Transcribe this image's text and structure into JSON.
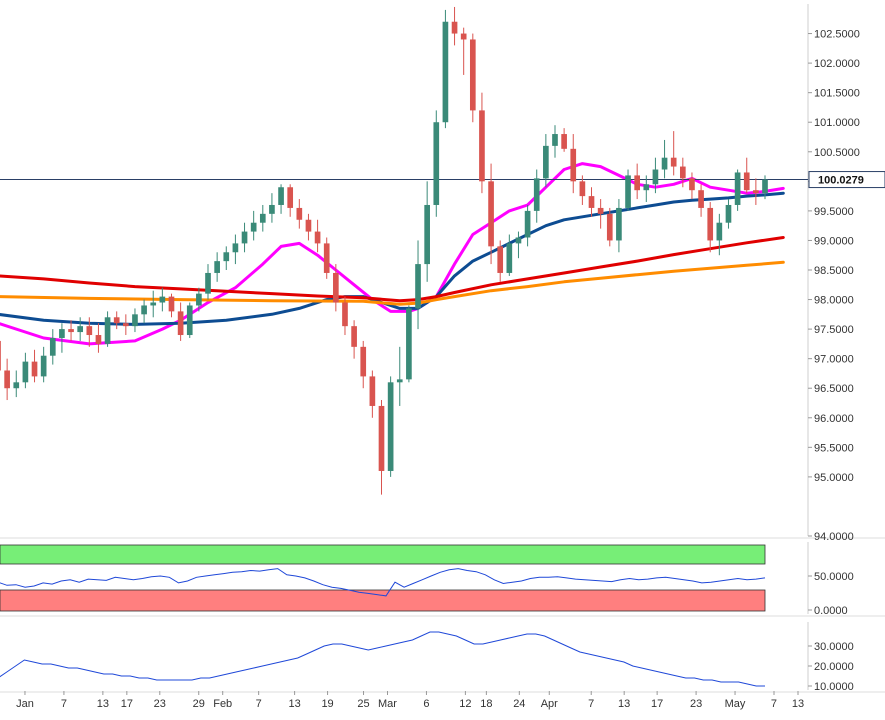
{
  "chart_data": [
    {
      "type": "candlestick",
      "y_ticks": [
        "94.0000",
        "95.0000",
        "95.5000",
        "96.0000",
        "96.5000",
        "97.0000",
        "97.5000",
        "98.0000",
        "98.5000",
        "99.0000",
        "99.5000",
        "100.0000",
        "100.5000",
        "101.0000",
        "101.5000",
        "102.0000",
        "102.5000"
      ],
      "ylim": [
        94.0,
        103.0
      ],
      "last_price": "100.0279",
      "x_ticks": [
        "Jan",
        "7",
        "13",
        "17",
        "23",
        "29",
        "Feb",
        "7",
        "13",
        "19",
        "25",
        "Mar",
        "6",
        "12",
        "18",
        "24",
        "Apr",
        "7",
        "13",
        "17",
        "23",
        "May",
        "7",
        "13"
      ],
      "candles": [
        [
          97.3,
          97.6,
          96.7,
          96.8
        ],
        [
          96.8,
          97.0,
          96.3,
          96.5
        ],
        [
          96.5,
          96.8,
          96.35,
          96.6
        ],
        [
          96.6,
          97.1,
          96.5,
          96.95
        ],
        [
          96.95,
          97.15,
          96.6,
          96.7
        ],
        [
          96.7,
          97.2,
          96.6,
          97.05
        ],
        [
          97.05,
          97.5,
          96.9,
          97.35
        ],
        [
          97.35,
          97.6,
          97.1,
          97.5
        ],
        [
          97.5,
          97.65,
          97.3,
          97.45
        ],
        [
          97.45,
          97.7,
          97.3,
          97.55
        ],
        [
          97.55,
          97.7,
          97.2,
          97.4
        ],
        [
          97.4,
          97.6,
          97.1,
          97.25
        ],
        [
          97.25,
          97.8,
          97.2,
          97.7
        ],
        [
          97.7,
          97.8,
          97.5,
          97.6
        ],
        [
          97.6,
          97.75,
          97.4,
          97.55
        ],
        [
          97.55,
          97.85,
          97.45,
          97.75
        ],
        [
          97.75,
          98.0,
          97.6,
          97.9
        ],
        [
          97.9,
          98.15,
          97.7,
          97.95
        ],
        [
          97.95,
          98.2,
          97.8,
          98.05
        ],
        [
          98.05,
          98.1,
          97.7,
          97.8
        ],
        [
          97.8,
          97.95,
          97.3,
          97.4
        ],
        [
          97.4,
          97.95,
          97.35,
          97.9
        ],
        [
          97.9,
          98.2,
          97.8,
          98.1
        ],
        [
          98.1,
          98.6,
          98.0,
          98.45
        ],
        [
          98.45,
          98.8,
          98.3,
          98.65
        ],
        [
          98.65,
          98.9,
          98.5,
          98.8
        ],
        [
          98.8,
          99.1,
          98.6,
          98.95
        ],
        [
          98.95,
          99.3,
          98.8,
          99.15
        ],
        [
          99.15,
          99.5,
          99.0,
          99.3
        ],
        [
          99.3,
          99.6,
          99.15,
          99.45
        ],
        [
          99.45,
          99.8,
          99.3,
          99.6
        ],
        [
          99.6,
          99.95,
          99.45,
          99.9
        ],
        [
          99.9,
          99.95,
          99.4,
          99.55
        ],
        [
          99.55,
          99.7,
          99.2,
          99.35
        ],
        [
          99.35,
          99.45,
          99.0,
          99.15
        ],
        [
          99.15,
          99.35,
          98.8,
          98.95
        ],
        [
          98.95,
          99.05,
          98.35,
          98.45
        ],
        [
          98.45,
          98.6,
          97.8,
          97.95
        ],
        [
          97.95,
          98.05,
          97.4,
          97.55
        ],
        [
          97.55,
          97.65,
          97.0,
          97.2
        ],
        [
          97.2,
          97.3,
          96.5,
          96.7
        ],
        [
          96.7,
          96.8,
          96.0,
          96.2
        ],
        [
          96.2,
          96.3,
          94.7,
          95.1
        ],
        [
          95.1,
          96.7,
          95.0,
          96.6
        ],
        [
          96.6,
          97.2,
          96.2,
          96.65
        ],
        [
          96.65,
          97.9,
          96.6,
          97.85
        ],
        [
          97.85,
          99.0,
          97.5,
          98.6
        ],
        [
          98.6,
          100.0,
          98.3,
          99.6
        ],
        [
          99.6,
          101.2,
          99.4,
          101.0
        ],
        [
          101.0,
          102.9,
          100.9,
          102.7
        ],
        [
          102.7,
          102.95,
          102.3,
          102.5
        ],
        [
          102.5,
          102.6,
          101.8,
          102.4
        ],
        [
          102.4,
          102.5,
          101.0,
          101.2
        ],
        [
          101.2,
          101.5,
          99.8,
          100.0
        ],
        [
          100.0,
          100.3,
          98.6,
          98.9
        ],
        [
          98.9,
          99.0,
          98.3,
          98.45
        ],
        [
          98.45,
          99.1,
          98.4,
          98.95
        ],
        [
          98.95,
          99.15,
          98.7,
          99.05
        ],
        [
          99.05,
          99.6,
          98.9,
          99.5
        ],
        [
          99.5,
          100.2,
          99.3,
          100.05
        ],
        [
          100.05,
          100.8,
          99.9,
          100.6
        ],
        [
          100.6,
          100.95,
          100.4,
          100.8
        ],
        [
          100.8,
          100.9,
          100.5,
          100.55
        ],
        [
          100.55,
          100.8,
          99.8,
          100.0
        ],
        [
          100.0,
          100.1,
          99.6,
          99.75
        ],
        [
          99.75,
          99.9,
          99.4,
          99.55
        ],
        [
          99.55,
          99.7,
          99.2,
          99.45
        ],
        [
          99.45,
          99.55,
          98.9,
          99.0
        ],
        [
          99.0,
          99.7,
          98.8,
          99.55
        ],
        [
          99.55,
          100.2,
          99.5,
          100.1
        ],
        [
          100.1,
          100.3,
          99.7,
          99.85
        ],
        [
          99.85,
          100.1,
          99.65,
          99.95
        ],
        [
          99.95,
          100.4,
          99.8,
          100.2
        ],
        [
          100.2,
          100.7,
          100.05,
          100.4
        ],
        [
          100.4,
          100.85,
          100.1,
          100.25
        ],
        [
          100.25,
          100.4,
          99.9,
          100.05
        ],
        [
          100.05,
          100.15,
          99.7,
          99.85
        ],
        [
          99.85,
          99.95,
          99.4,
          99.55
        ],
        [
          99.55,
          99.65,
          98.8,
          99.0
        ],
        [
          99.0,
          99.45,
          98.75,
          99.3
        ],
        [
          99.3,
          99.7,
          99.2,
          99.6
        ],
        [
          99.6,
          100.2,
          99.5,
          100.15
        ],
        [
          100.15,
          100.4,
          99.8,
          99.85
        ],
        [
          99.85,
          100.05,
          99.6,
          99.8
        ],
        [
          99.8,
          100.1,
          99.7,
          100.03
        ]
      ],
      "series": [
        {
          "color": "#ff00ff",
          "values": [
            [
              0,
              97.6
            ],
            [
              5,
              97.35
            ],
            [
              10,
              97.25
            ],
            [
              15,
              97.3
            ],
            [
              18,
              97.5
            ],
            [
              20,
              97.65
            ],
            [
              23,
              97.95
            ],
            [
              26,
              98.2
            ],
            [
              29,
              98.6
            ],
            [
              31,
              98.9
            ],
            [
              33,
              98.95
            ],
            [
              35,
              98.75
            ],
            [
              37,
              98.5
            ],
            [
              39,
              98.25
            ],
            [
              41,
              98.0
            ],
            [
              43,
              97.8
            ],
            [
              45,
              97.8
            ],
            [
              46,
              97.85
            ],
            [
              48,
              98.05
            ],
            [
              50,
              98.6
            ],
            [
              52,
              99.1
            ],
            [
              54,
              99.3
            ],
            [
              56,
              99.5
            ],
            [
              58,
              99.6
            ],
            [
              60,
              99.9
            ],
            [
              62,
              100.2
            ],
            [
              64,
              100.3
            ],
            [
              66,
              100.25
            ],
            [
              68,
              100.1
            ],
            [
              70,
              99.95
            ],
            [
              72,
              99.9
            ],
            [
              74,
              99.95
            ],
            [
              76,
              100.05
            ],
            [
              78,
              99.9
            ],
            [
              80,
              99.85
            ],
            [
              82,
              99.8
            ],
            [
              84,
              99.83
            ],
            [
              86,
              99.88
            ]
          ]
        },
        {
          "color": "#0d4c92",
          "values": [
            [
              0,
              97.75
            ],
            [
              5,
              97.65
            ],
            [
              10,
              97.6
            ],
            [
              15,
              97.58
            ],
            [
              20,
              97.6
            ],
            [
              25,
              97.65
            ],
            [
              30,
              97.75
            ],
            [
              33,
              97.85
            ],
            [
              36,
              98.0
            ],
            [
              38,
              98.05
            ],
            [
              40,
              98.05
            ],
            [
              42,
              97.95
            ],
            [
              44,
              97.85
            ],
            [
              46,
              97.85
            ],
            [
              48,
              98.05
            ],
            [
              50,
              98.4
            ],
            [
              52,
              98.65
            ],
            [
              54,
              98.8
            ],
            [
              56,
              98.95
            ],
            [
              58,
              99.1
            ],
            [
              60,
              99.25
            ],
            [
              62,
              99.35
            ],
            [
              64,
              99.4
            ],
            [
              66,
              99.45
            ],
            [
              68,
              99.5
            ],
            [
              70,
              99.55
            ],
            [
              72,
              99.6
            ],
            [
              74,
              99.65
            ],
            [
              76,
              99.68
            ],
            [
              78,
              99.7
            ],
            [
              80,
              99.72
            ],
            [
              82,
              99.75
            ],
            [
              84,
              99.77
            ],
            [
              86,
              99.8
            ]
          ]
        },
        {
          "color": "#ff8c00",
          "values": [
            [
              0,
              98.05
            ],
            [
              10,
              98.02
            ],
            [
              20,
              98.0
            ],
            [
              30,
              97.98
            ],
            [
              40,
              97.97
            ],
            [
              44,
              97.92
            ],
            [
              46,
              97.94
            ],
            [
              48,
              98.0
            ],
            [
              50,
              98.05
            ],
            [
              54,
              98.15
            ],
            [
              58,
              98.22
            ],
            [
              62,
              98.3
            ],
            [
              66,
              98.36
            ],
            [
              70,
              98.42
            ],
            [
              74,
              98.48
            ],
            [
              78,
              98.53
            ],
            [
              82,
              98.58
            ],
            [
              86,
              98.63
            ]
          ]
        },
        {
          "color": "#e00000",
          "values": [
            [
              0,
              98.4
            ],
            [
              5,
              98.35
            ],
            [
              10,
              98.28
            ],
            [
              15,
              98.22
            ],
            [
              20,
              98.18
            ],
            [
              25,
              98.14
            ],
            [
              30,
              98.1
            ],
            [
              35,
              98.06
            ],
            [
              40,
              98.03
            ],
            [
              44,
              97.98
            ],
            [
              46,
              98.0
            ],
            [
              48,
              98.05
            ],
            [
              50,
              98.12
            ],
            [
              54,
              98.25
            ],
            [
              58,
              98.35
            ],
            [
              62,
              98.45
            ],
            [
              66,
              98.55
            ],
            [
              70,
              98.65
            ],
            [
              74,
              98.76
            ],
            [
              78,
              98.86
            ],
            [
              82,
              98.96
            ],
            [
              86,
              99.05
            ]
          ]
        }
      ]
    },
    {
      "type": "line",
      "y_ticks": [
        "0.0000",
        "50.0000"
      ],
      "ylim": [
        0,
        100
      ],
      "overbought_color": "#77ee77",
      "oversold_color": "#ff7f7f",
      "series": [
        {
          "color": "#1f48d8",
          "values": [
            48,
            43,
            44,
            40,
            42,
            47,
            45,
            50,
            52,
            48,
            53,
            52,
            51,
            56,
            54,
            52,
            54,
            57,
            58,
            56,
            47,
            50,
            56,
            58,
            60,
            62,
            64,
            65,
            67,
            66,
            68,
            70,
            60,
            58,
            55,
            50,
            44,
            40,
            38,
            35,
            32,
            30,
            28,
            26,
            48,
            40,
            46,
            52,
            58,
            64,
            68,
            70,
            67,
            65,
            60,
            52,
            46,
            48,
            50,
            54,
            56,
            56,
            57,
            55,
            53,
            52,
            51,
            50,
            49,
            52,
            54,
            52,
            53,
            55,
            56,
            54,
            52,
            50,
            47,
            48,
            50,
            52,
            54,
            52,
            53,
            55
          ]
        }
      ]
    },
    {
      "type": "line",
      "y_ticks": [
        "10.0000",
        "20.0000",
        "30.0000"
      ],
      "ylim": [
        8,
        42
      ],
      "series": [
        {
          "color": "#1f48d8",
          "values": [
            14,
            17,
            20,
            23,
            22,
            21,
            21,
            20,
            19,
            19,
            18,
            17,
            16,
            16,
            15,
            15,
            14,
            14,
            13,
            13,
            13,
            13,
            13,
            14,
            14,
            15,
            16,
            17,
            18,
            19,
            20,
            21,
            22,
            23,
            24,
            26,
            28,
            30,
            31,
            31,
            30,
            29,
            28,
            29,
            30,
            31,
            32,
            33,
            35,
            37,
            37,
            36,
            35,
            33,
            31,
            31,
            32,
            33,
            34,
            35,
            36,
            36,
            35,
            33,
            31,
            29,
            27,
            26,
            25,
            24,
            23,
            22,
            20,
            19,
            18,
            17,
            16,
            15,
            14,
            14,
            13,
            13,
            12,
            12,
            12,
            11,
            10,
            10
          ]
        }
      ]
    }
  ]
}
